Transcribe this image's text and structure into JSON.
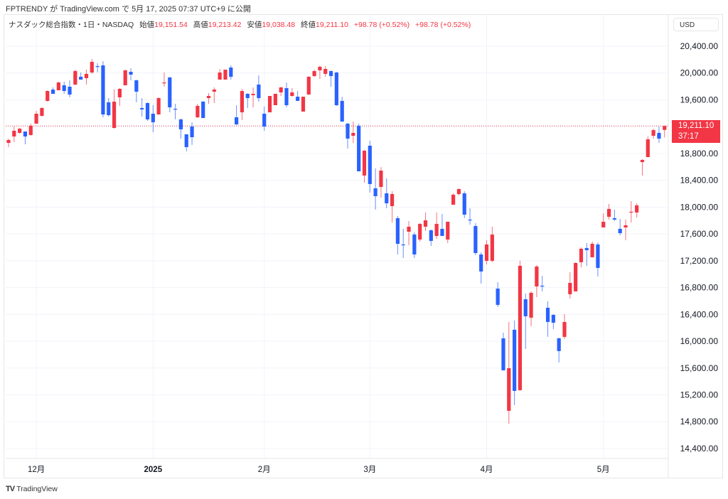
{
  "attribution": "FPTRENDY が TradingView.com で 5月 17, 2025 07:37 UTC+9 に公開",
  "legend": {
    "symbol": "ナスダック総合指数・1日・NASDAQ",
    "open_label": "始値",
    "open": "19,151.54",
    "high_label": "高値",
    "high": "19,213.42",
    "low_label": "安値",
    "low": "19,038.48",
    "close_label": "終値",
    "close": "19,211.10",
    "change1": "+98.78 (+0.52%)",
    "change2": "+98.78 (+0.52%)"
  },
  "currency": "USD",
  "last_price_label": "19,211.10",
  "countdown": "37:17",
  "brand": "TradingView",
  "colors": {
    "up": "#f23645",
    "down": "#2962ff",
    "grid": "#f0f3fa",
    "last_line": "#f23645"
  },
  "chart_data": {
    "type": "candlestick",
    "interval": "1D",
    "ylim": [
      14200,
      20600
    ],
    "y_ticks": [
      14400,
      14800,
      15200,
      15600,
      16000,
      16400,
      16800,
      17200,
      17600,
      18000,
      18400,
      18800,
      19200,
      19600,
      20000,
      20400
    ],
    "y_tick_labels": [
      "14,400.00",
      "14,800.00",
      "15,200.00",
      "15,600.00",
      "16,000.00",
      "16,400.00",
      "16,800.00",
      "17,200.00",
      "17,600.00",
      "18,000.00",
      "18,400.00",
      "18,800.00",
      "",
      "19,600.00",
      "20,000.00",
      "20,400.00"
    ],
    "x_ticks": [
      {
        "label": "12月",
        "index": 5
      },
      {
        "label": "2025",
        "index": 26,
        "bold": true
      },
      {
        "label": "2月",
        "index": 46
      },
      {
        "label": "3月",
        "index": 65
      },
      {
        "label": "4月",
        "index": 86
      },
      {
        "label": "5月",
        "index": 107
      }
    ],
    "last_price": 19211.1,
    "grid": true,
    "ohlc": [
      [
        18958,
        19022,
        18895,
        19001
      ],
      [
        19054,
        19202,
        18969,
        19139
      ],
      [
        19107,
        19181,
        19096,
        19170
      ],
      [
        19128,
        19128,
        18937,
        19054
      ],
      [
        19075,
        19245,
        19064,
        19213
      ],
      [
        19245,
        19435,
        19245,
        19393
      ],
      [
        19361,
        19488,
        19351,
        19478
      ],
      [
        19584,
        19743,
        19573,
        19732
      ],
      [
        19753,
        19785,
        19690,
        19690
      ],
      [
        19743,
        19870,
        19743,
        19859
      ],
      [
        19817,
        19870,
        19690,
        19732
      ],
      [
        19796,
        19891,
        19637,
        19679
      ],
      [
        19828,
        20050,
        19817,
        20029
      ],
      [
        19944,
        20008,
        19902,
        19902
      ],
      [
        19923,
        20050,
        19828,
        19987
      ],
      [
        20008,
        20209,
        19987,
        20167
      ],
      [
        20103,
        20146,
        20008,
        20093
      ],
      [
        20114,
        20177,
        19340,
        19382
      ],
      [
        19563,
        19626,
        19351,
        19372
      ],
      [
        19181,
        19753,
        19170,
        19573
      ],
      [
        19637,
        19774,
        19510,
        19764
      ],
      [
        19817,
        20050,
        19817,
        20040
      ],
      [
        20018,
        20071,
        19891,
        19976
      ],
      [
        19891,
        19902,
        19563,
        19722
      ],
      [
        19478,
        19626,
        19351,
        19457
      ],
      [
        19552,
        19563,
        19287,
        19308
      ],
      [
        19393,
        19520,
        19117,
        19266
      ],
      [
        19382,
        19637,
        19382,
        19626
      ],
      [
        19849,
        20008,
        19796,
        19859
      ],
      [
        19934,
        19944,
        19414,
        19488
      ],
      [
        19467,
        19541,
        19308,
        19457
      ],
      [
        19308,
        19319,
        19022,
        19160
      ],
      [
        19086,
        19086,
        18831,
        18895
      ],
      [
        19202,
        19266,
        18927,
        19043
      ],
      [
        19340,
        19541,
        19329,
        19510
      ],
      [
        19573,
        19584,
        19329,
        19329
      ],
      [
        19626,
        19700,
        19541,
        19658
      ],
      [
        19722,
        19785,
        19552,
        19753
      ],
      [
        19902,
        20061,
        19902,
        20008
      ],
      [
        19902,
        20050,
        19902,
        20050
      ],
      [
        20082,
        20114,
        19902,
        19944
      ],
      [
        19340,
        19520,
        19224,
        19234
      ],
      [
        19414,
        19764,
        19298,
        19732
      ],
      [
        19690,
        19700,
        19478,
        19626
      ],
      [
        19669,
        19785,
        19488,
        19690
      ],
      [
        19828,
        19965,
        19573,
        19626
      ],
      [
        19393,
        19499,
        19139,
        19202
      ],
      [
        19414,
        19658,
        19414,
        19658
      ],
      [
        19520,
        19690,
        19520,
        19690
      ],
      [
        19711,
        19796,
        19658,
        19785
      ],
      [
        19775,
        19859,
        19488,
        19520
      ],
      [
        19658,
        19775,
        19647,
        19711
      ],
      [
        19647,
        19732,
        19584,
        19584
      ],
      [
        19425,
        19647,
        19425,
        19647
      ],
      [
        19679,
        19955,
        19679,
        19944
      ],
      [
        19955,
        20050,
        19944,
        20029
      ],
      [
        20040,
        20114,
        19912,
        20093
      ],
      [
        19987,
        20103,
        19944,
        20061
      ],
      [
        20029,
        20040,
        19796,
        19955
      ],
      [
        20008,
        20018,
        19510,
        19520
      ],
      [
        19584,
        19647,
        19276,
        19276
      ],
      [
        19245,
        19255,
        18874,
        19022
      ],
      [
        19064,
        19276,
        18958,
        19107
      ],
      [
        19213,
        19245,
        18534,
        18534
      ],
      [
        18471,
        18852,
        18365,
        18842
      ],
      [
        18916,
        18990,
        18216,
        18344
      ],
      [
        18280,
        18577,
        17962,
        18163
      ],
      [
        18301,
        18598,
        18142,
        18545
      ],
      [
        18206,
        18428,
        17983,
        18057
      ],
      [
        18015,
        18238,
        17771,
        18195
      ],
      [
        17835,
        17867,
        17294,
        17453
      ],
      [
        17443,
        17676,
        17241,
        17432
      ],
      [
        17633,
        17792,
        17432,
        17708
      ],
      [
        17591,
        17623,
        17241,
        17294
      ],
      [
        17517,
        17760,
        17485,
        17750
      ],
      [
        17708,
        17920,
        17644,
        17803
      ],
      [
        17655,
        17665,
        17421,
        17496
      ],
      [
        17570,
        17920,
        17527,
        17750
      ],
      [
        17676,
        17898,
        17570,
        17570
      ],
      [
        17517,
        17782,
        17464,
        17782
      ],
      [
        18036,
        18206,
        18036,
        18185
      ],
      [
        18195,
        18280,
        18174,
        18269
      ],
      [
        18206,
        18238,
        17835,
        17888
      ],
      [
        17814,
        17983,
        17739,
        17803
      ],
      [
        17718,
        17760,
        17284,
        17315
      ],
      [
        17294,
        17326,
        16860,
        17040
      ],
      [
        17199,
        17506,
        17146,
        17443
      ],
      [
        17199,
        17708,
        17178,
        17591
      ],
      [
        16785,
        16881,
        16510,
        16542
      ],
      [
        16043,
        16128,
        15566,
        15566
      ],
      [
        14962,
        16287,
        14771,
        15598
      ],
      [
        16171,
        16308,
        15047,
        15259
      ],
      [
        15270,
        17199,
        15259,
        17125
      ],
      [
        16626,
        16711,
        15884,
        16372
      ],
      [
        16351,
        16743,
        16224,
        16722
      ],
      [
        16817,
        17135,
        16658,
        17114
      ],
      [
        16828,
        16976,
        16743,
        16817
      ],
      [
        16499,
        16595,
        16065,
        16287
      ],
      [
        16393,
        16404,
        16181,
        16276
      ],
      [
        16043,
        16054,
        15683,
        15853
      ],
      [
        16065,
        16404,
        16033,
        16287
      ],
      [
        16701,
        17029,
        16637,
        16870
      ],
      [
        16743,
        17178,
        16743,
        17167
      ],
      [
        17178,
        17400,
        17103,
        17379
      ],
      [
        17390,
        17464,
        17125,
        17358
      ],
      [
        17252,
        17485,
        17252,
        17453
      ],
      [
        17443,
        17474,
        16966,
        17093
      ],
      [
        17697,
        17909,
        17697,
        17782
      ],
      [
        17856,
        18047,
        17814,
        17973
      ],
      [
        17835,
        17962,
        17792,
        17814
      ],
      [
        17676,
        17824,
        17580,
        17612
      ],
      [
        17697,
        17814,
        17506,
        17729
      ],
      [
        17920,
        18089,
        17771,
        17931
      ],
      [
        17920,
        18057,
        17845,
        18026
      ],
      [
        18672,
        18714,
        18471,
        18704
      ],
      [
        18746,
        19054,
        18746,
        19011
      ],
      [
        19064,
        19170,
        19022,
        19149
      ],
      [
        19107,
        19202,
        18958,
        19022
      ],
      [
        19151.54,
        19213.42,
        19038.48,
        19211.1
      ]
    ]
  }
}
